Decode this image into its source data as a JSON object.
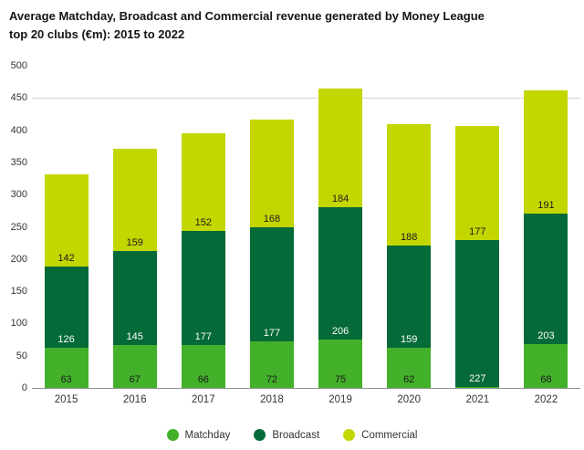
{
  "title": {
    "line1": "Average Matchday, Broadcast and Commercial revenue generated by Money League",
    "line2": "top 20 clubs (€m): 2015 to 2022"
  },
  "colors": {
    "matchday": "#43b02a",
    "broadcast": "#046a38",
    "commercial": "#c4d600",
    "gridline": "#d4d4d4",
    "axis_line": "#8f8f8f",
    "tick_text": "#333333"
  },
  "chart_data": {
    "type": "bar",
    "stacked": true,
    "title": "Average Matchday, Broadcast and Commercial revenue generated by Money League top 20 clubs (€m): 2015 to 2022",
    "xlabel": "",
    "ylabel": "",
    "categories": [
      "2015",
      "2016",
      "2017",
      "2018",
      "2019",
      "2020",
      "2021",
      "2022"
    ],
    "series": [
      {
        "name": "Matchday",
        "color_key": "matchday",
        "values": [
          63,
          67,
          66,
          72,
          75,
          62,
          2,
          68
        ],
        "labels": [
          "63",
          "67",
          "66",
          "72",
          "75",
          "62",
          "",
          "68"
        ],
        "label_color": "#1b1b1b"
      },
      {
        "name": "Broadcast",
        "color_key": "broadcast",
        "values": [
          126,
          145,
          177,
          177,
          206,
          159,
          227,
          203
        ],
        "labels": [
          "126",
          "145",
          "177",
          "177",
          "206",
          "159",
          "227",
          "203"
        ],
        "label_color": "#ffffff"
      },
      {
        "name": "Commercial",
        "color_key": "commercial",
        "values": [
          142,
          159,
          152,
          168,
          184,
          188,
          177,
          191
        ],
        "labels": [
          "142",
          "159",
          "152",
          "168",
          "184",
          "188",
          "177",
          "191"
        ],
        "label_color": "#1b1b1b"
      }
    ],
    "ylim": [
      0,
      500
    ],
    "yticks": [
      0,
      50,
      100,
      150,
      200,
      250,
      300,
      350,
      400,
      450,
      500
    ],
    "gridlines": [
      450
    ],
    "grid": "single line at 450 plus zero baseline",
    "legend": [
      "Matchday",
      "Broadcast",
      "Commercial"
    ],
    "legend_position": "bottom"
  }
}
